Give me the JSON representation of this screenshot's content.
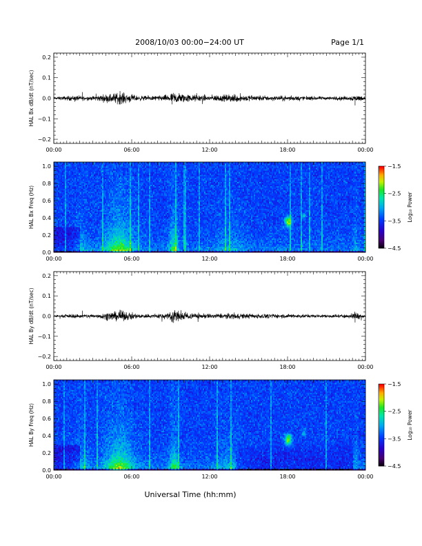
{
  "header": {
    "title": "2008/10/03   00:00−24:00 UT",
    "page": "Page 1/1"
  },
  "xlabel": "Universal Time (hh:mm)",
  "colorbar_label": "Log₁₀ Power",
  "chart_data": [
    {
      "type": "line",
      "ylabel": "HAL Bx dB/dt (nT/sec)",
      "ylim": [
        -0.22,
        0.22
      ],
      "yticks": [
        "0.2",
        "0.1",
        "0.0",
        "−0.1",
        "−0.2"
      ],
      "ytick_values": [
        0.2,
        0.1,
        0.0,
        -0.1,
        -0.2
      ],
      "xticks": [
        "00:00",
        "06:00",
        "12:00",
        "18:00",
        "00:00"
      ],
      "xtick_hours": [
        0,
        6,
        12,
        18,
        24
      ],
      "xlim_hours": [
        0,
        24
      ],
      "series_envelope": {
        "hours": [
          0,
          1.5,
          2.8,
          3.5,
          5.1,
          6.5,
          8,
          8.8,
          9.3,
          10.5,
          12,
          13.5,
          14.1,
          15,
          17,
          18.5,
          20,
          21.5,
          22.8,
          23.2,
          24
        ],
        "amplitude": [
          0.004,
          0.009,
          0.007,
          0.01,
          0.02,
          0.008,
          0.008,
          0.012,
          0.02,
          0.012,
          0.01,
          0.012,
          0.014,
          0.01,
          0.008,
          0.008,
          0.006,
          0.006,
          0.007,
          0.012,
          0.005
        ]
      }
    },
    {
      "type": "heatmap",
      "ylabel": "HAL Bx Freq (Hz)",
      "ylim": [
        0,
        1.05
      ],
      "yticks": [
        "1.0",
        "0.8",
        "0.6",
        "0.4",
        "0.2",
        "0.0"
      ],
      "ytick_values": [
        1.0,
        0.8,
        0.6,
        0.4,
        0.2,
        0.0
      ],
      "xticks": [
        "00:00",
        "06:00",
        "12:00",
        "18:00",
        "00:00"
      ],
      "xtick_hours": [
        0,
        6,
        12,
        18,
        24
      ],
      "xlim_hours": [
        0,
        24
      ],
      "colorbar": {
        "ticks": [
          "−1.5",
          "−2.5",
          "−3.5",
          "−4.5"
        ],
        "tick_values": [
          -1.5,
          -2.5,
          -3.5,
          -4.5
        ],
        "range": [
          -4.5,
          -1.5
        ]
      }
    },
    {
      "type": "line",
      "ylabel": "HAL By dB/dt (nT/sec)",
      "ylim": [
        -0.22,
        0.22
      ],
      "yticks": [
        "0.2",
        "0.1",
        "0.0",
        "−0.1",
        "−0.2"
      ],
      "ytick_values": [
        0.2,
        0.1,
        0.0,
        -0.1,
        -0.2
      ],
      "xticks": [
        "00:00",
        "06:00",
        "12:00",
        "18:00",
        "00:00"
      ],
      "xtick_hours": [
        0,
        6,
        12,
        18,
        24
      ],
      "xlim_hours": [
        0,
        24
      ],
      "series_envelope": {
        "hours": [
          0,
          1.5,
          2.8,
          3.5,
          5.1,
          6.5,
          8,
          8.8,
          9.3,
          10.5,
          12,
          13.5,
          14.1,
          15,
          17,
          18.5,
          20,
          21.5,
          22.8,
          23.2,
          24
        ],
        "amplitude": [
          0.003,
          0.007,
          0.006,
          0.008,
          0.018,
          0.007,
          0.008,
          0.012,
          0.022,
          0.01,
          0.008,
          0.009,
          0.01,
          0.008,
          0.007,
          0.007,
          0.005,
          0.006,
          0.006,
          0.014,
          0.004
        ]
      }
    },
    {
      "type": "heatmap",
      "ylabel": "HAL By Freq (Hz)",
      "ylim": [
        0,
        1.05
      ],
      "yticks": [
        "1.0",
        "0.8",
        "0.6",
        "0.4",
        "0.2",
        "0.0"
      ],
      "ytick_values": [
        1.0,
        0.8,
        0.6,
        0.4,
        0.2,
        0.0
      ],
      "xticks": [
        "00:00",
        "06:00",
        "12:00",
        "18:00",
        "00:00"
      ],
      "xtick_hours": [
        0,
        6,
        12,
        18,
        24
      ],
      "xlim_hours": [
        0,
        24
      ],
      "colorbar": {
        "ticks": [
          "−1.5",
          "−2.5",
          "−3.5",
          "−4.5"
        ],
        "tick_values": [
          -1.5,
          -2.5,
          -3.5,
          -4.5
        ],
        "range": [
          -4.5,
          -1.5
        ]
      }
    }
  ]
}
